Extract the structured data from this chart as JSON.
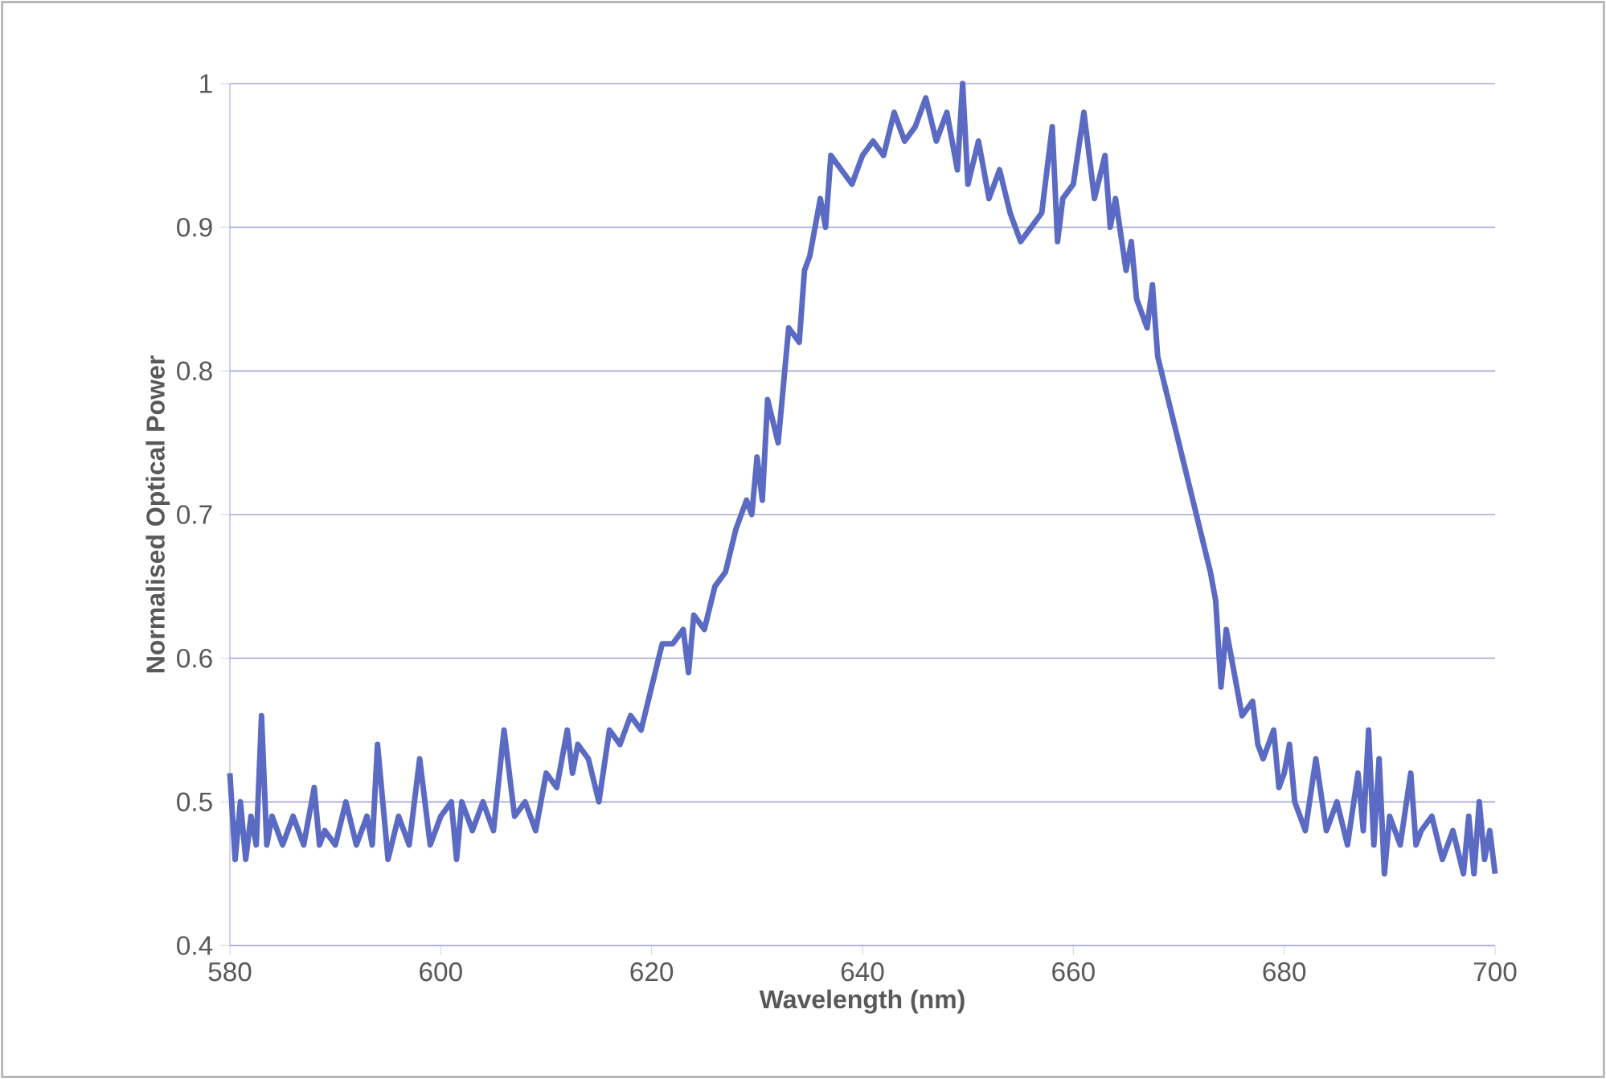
{
  "chart_data": {
    "type": "line",
    "xlabel": "Wavelength (nm)",
    "ylabel": "Normalised Optical Power",
    "xlim": [
      580,
      700
    ],
    "xticks": [
      580,
      600,
      620,
      640,
      660,
      680,
      700
    ],
    "ylim": [
      0.4,
      1
    ],
    "yticks": [
      0.4,
      0.5,
      0.6,
      0.7,
      0.8,
      0.9,
      1
    ],
    "grid": "y",
    "marker": "none",
    "line_style": "solid",
    "series": [
      {
        "color": "#5b6bc4",
        "x": [
          580,
          580.5,
          581,
          581.5,
          582,
          582.5,
          583,
          583.5,
          584,
          585,
          586,
          587,
          588,
          588.5,
          589,
          590,
          591,
          592,
          593,
          593.5,
          594,
          595,
          596,
          597,
          598,
          599,
          600,
          601,
          601.5,
          602,
          603,
          604,
          605,
          606,
          607,
          608,
          609,
          610,
          611,
          612,
          612.5,
          613,
          614,
          615,
          616,
          617,
          618,
          619,
          620,
          621,
          622,
          623,
          623.5,
          624,
          625,
          626,
          627,
          628,
          629,
          629.5,
          630,
          630.5,
          631,
          632,
          632.5,
          633,
          634,
          634.5,
          635,
          636,
          636.5,
          637,
          638,
          639,
          640,
          641,
          642,
          643,
          644,
          645,
          646,
          647,
          648,
          649,
          649.5,
          650,
          651,
          652,
          653,
          654,
          655,
          656,
          657,
          658,
          658.5,
          659,
          660,
          661,
          662,
          663,
          663.5,
          664,
          665,
          665.5,
          666,
          667,
          667.5,
          668,
          669,
          670,
          671,
          672,
          673,
          673.5,
          674,
          674.5,
          675,
          676,
          677,
          677.5,
          678,
          679,
          679.5,
          680,
          680.5,
          681,
          682,
          683,
          684,
          685,
          686,
          687,
          687.5,
          688,
          688.5,
          689,
          689.5,
          690,
          691,
          692,
          692.5,
          693,
          694,
          695,
          696,
          697,
          697.5,
          698,
          698.5,
          699,
          699.5,
          700
        ],
        "values": [
          0.52,
          0.46,
          0.5,
          0.46,
          0.49,
          0.47,
          0.56,
          0.47,
          0.49,
          0.47,
          0.49,
          0.47,
          0.51,
          0.47,
          0.48,
          0.47,
          0.5,
          0.47,
          0.49,
          0.47,
          0.54,
          0.46,
          0.49,
          0.47,
          0.53,
          0.47,
          0.49,
          0.5,
          0.46,
          0.5,
          0.48,
          0.5,
          0.48,
          0.55,
          0.49,
          0.5,
          0.48,
          0.52,
          0.51,
          0.55,
          0.52,
          0.54,
          0.53,
          0.5,
          0.55,
          0.54,
          0.56,
          0.55,
          0.58,
          0.61,
          0.61,
          0.62,
          0.59,
          0.63,
          0.62,
          0.65,
          0.66,
          0.69,
          0.71,
          0.7,
          0.74,
          0.71,
          0.78,
          0.75,
          0.79,
          0.83,
          0.82,
          0.87,
          0.88,
          0.92,
          0.9,
          0.95,
          0.94,
          0.93,
          0.95,
          0.96,
          0.95,
          0.98,
          0.96,
          0.97,
          0.99,
          0.96,
          0.98,
          0.94,
          1.0,
          0.93,
          0.96,
          0.92,
          0.94,
          0.91,
          0.89,
          0.9,
          0.91,
          0.97,
          0.89,
          0.92,
          0.93,
          0.98,
          0.92,
          0.95,
          0.9,
          0.92,
          0.87,
          0.89,
          0.85,
          0.83,
          0.86,
          0.81,
          0.78,
          0.75,
          0.72,
          0.69,
          0.66,
          0.64,
          0.58,
          0.62,
          0.6,
          0.56,
          0.57,
          0.54,
          0.53,
          0.55,
          0.51,
          0.52,
          0.54,
          0.5,
          0.48,
          0.53,
          0.48,
          0.5,
          0.47,
          0.52,
          0.48,
          0.55,
          0.47,
          0.53,
          0.45,
          0.49,
          0.47,
          0.52,
          0.47,
          0.48,
          0.49,
          0.46,
          0.48,
          0.45,
          0.49,
          0.45,
          0.5,
          0.46,
          0.48,
          0.45
        ]
      }
    ]
  }
}
